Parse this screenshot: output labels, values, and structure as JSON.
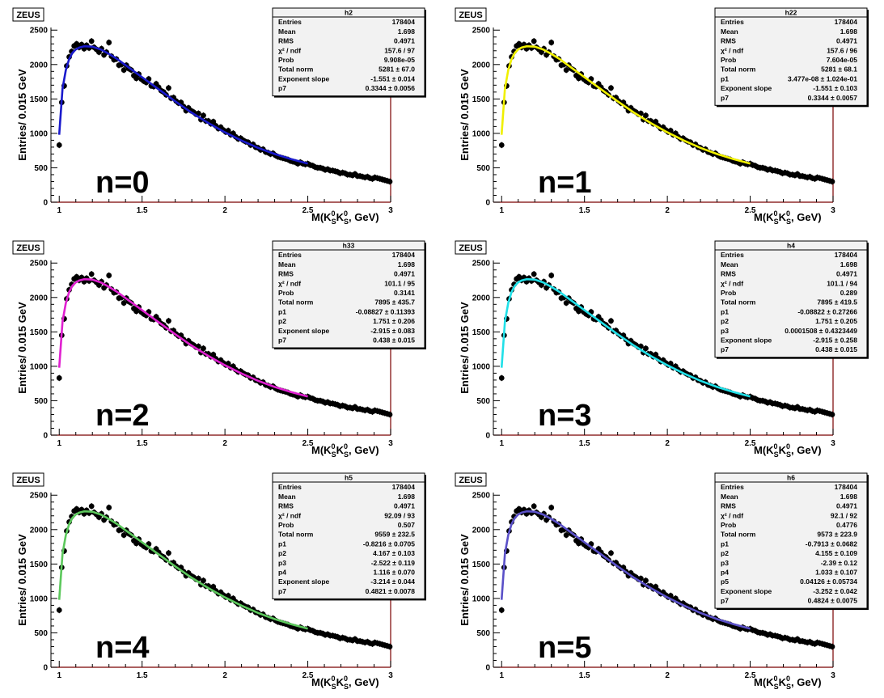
{
  "common": {
    "zeus_label": "ZEUS",
    "ylabel": "Entries/ 0.015 GeV",
    "xlabel_main": "M(K",
    "xlabel_sub1": "S",
    "xlabel_sup1": "0",
    "xlabel_mid": "K",
    "xlabel_sub2": "S",
    "xlabel_sup2": "0",
    "xlabel_end": ", GeV)",
    "xticks": [
      "1",
      "1.5",
      "2",
      "2.5",
      "3"
    ],
    "yticks": [
      "0",
      "500",
      "1000",
      "1500",
      "2000",
      "2500"
    ]
  },
  "chart_data": [
    {
      "type": "scatter",
      "annotation": "n=0",
      "fit_color": "#1a1acc",
      "xlim": [
        0.95,
        3.0
      ],
      "ylim": [
        0,
        2500
      ],
      "stats_title": "h2",
      "stats": [
        [
          "Entries",
          "178404"
        ],
        [
          "Mean",
          "1.698"
        ],
        [
          "RMS",
          "0.4971"
        ],
        [
          "χ² / ndf",
          "157.6 / 97"
        ],
        [
          "Prob",
          "9.908e-05"
        ],
        [
          "Total norm",
          "5281 ± 67.0"
        ],
        [
          "Exponent slope",
          "-1.551 ± 0.014"
        ],
        [
          "p7",
          "0.3344 ± 0.0056"
        ]
      ]
    },
    {
      "type": "scatter",
      "annotation": "n=1",
      "fit_color": "#f0f000",
      "xlim": [
        0.95,
        3.0
      ],
      "ylim": [
        0,
        2500
      ],
      "stats_title": "h22",
      "stats": [
        [
          "Entries",
          "178404"
        ],
        [
          "Mean",
          "1.698"
        ],
        [
          "RMS",
          "0.4971"
        ],
        [
          "χ² / ndf",
          "157.6 / 96"
        ],
        [
          "Prob",
          "7.604e-05"
        ],
        [
          "Total norm",
          "5281 ± 68.1"
        ],
        [
          "p1",
          "3.477e-08 ± 1.024e-01"
        ],
        [
          "Exponent slope",
          "-1.551 ± 0.103"
        ],
        [
          "p7",
          "0.3344 ± 0.0057"
        ]
      ]
    },
    {
      "type": "scatter",
      "annotation": "n=2",
      "fit_color": "#e020d0",
      "xlim": [
        0.95,
        3.0
      ],
      "ylim": [
        0,
        2500
      ],
      "stats_title": "h33",
      "stats": [
        [
          "Entries",
          "178404"
        ],
        [
          "Mean",
          "1.698"
        ],
        [
          "RMS",
          "0.4971"
        ],
        [
          "χ² / ndf",
          "101.1 / 95"
        ],
        [
          "Prob",
          "0.3141"
        ],
        [
          "Total norm",
          "7895 ± 435.7"
        ],
        [
          "p1",
          "-0.08827 ± 0.11393"
        ],
        [
          "p2",
          "1.751 ± 0.206"
        ],
        [
          "Exponent slope",
          "-2.915 ± 0.083"
        ],
        [
          "p7",
          "0.438 ± 0.015"
        ]
      ]
    },
    {
      "type": "scatter",
      "annotation": "n=3",
      "fit_color": "#20e0e8",
      "xlim": [
        0.95,
        3.0
      ],
      "ylim": [
        0,
        2500
      ],
      "stats_title": "h4",
      "stats": [
        [
          "Entries",
          "178404"
        ],
        [
          "Mean",
          "1.698"
        ],
        [
          "RMS",
          "0.4971"
        ],
        [
          "χ² / ndf",
          "101.1 / 94"
        ],
        [
          "Prob",
          "0.289"
        ],
        [
          "Total norm",
          "7895 ± 419.5"
        ],
        [
          "p1",
          "-0.08822 ± 0.27266"
        ],
        [
          "p2",
          "1.751 ± 0.205"
        ],
        [
          "p3",
          "0.0001508 ± 0.4323449"
        ],
        [
          "Exponent slope",
          "-2.915 ± 0.258"
        ],
        [
          "p7",
          "0.438 ± 0.015"
        ]
      ]
    },
    {
      "type": "scatter",
      "annotation": "n=4",
      "fit_color": "#5cc85c",
      "xlim": [
        0.95,
        3.0
      ],
      "ylim": [
        0,
        2500
      ],
      "stats_title": "h5",
      "stats": [
        [
          "Entries",
          "178404"
        ],
        [
          "Mean",
          "1.698"
        ],
        [
          "RMS",
          "0.4971"
        ],
        [
          "χ² / ndf",
          "92.09 / 93"
        ],
        [
          "Prob",
          "0.507"
        ],
        [
          "Total norm",
          "9559 ± 232.5"
        ],
        [
          "p1",
          "-0.8216 ± 0.0705"
        ],
        [
          "p2",
          "4.167 ± 0.103"
        ],
        [
          "p3",
          "-2.522 ± 0.119"
        ],
        [
          "p4",
          "1.116 ± 0.070"
        ],
        [
          "Exponent slope",
          "-3.214 ± 0.044"
        ],
        [
          "p7",
          "0.4821 ± 0.0078"
        ]
      ]
    },
    {
      "type": "scatter",
      "annotation": "n=5",
      "fit_color": "#5a50c8",
      "xlim": [
        0.95,
        3.0
      ],
      "ylim": [
        0,
        2500
      ],
      "stats_title": "h6",
      "stats": [
        [
          "Entries",
          "178404"
        ],
        [
          "Mean",
          "1.698"
        ],
        [
          "RMS",
          "0.4971"
        ],
        [
          "χ² / ndf",
          "92.1 / 92"
        ],
        [
          "Prob",
          "0.4776"
        ],
        [
          "Total norm",
          "9573 ± 223.9"
        ],
        [
          "p1",
          "-0.7913 ± 0.0682"
        ],
        [
          "p2",
          "4.155 ± 0.109"
        ],
        [
          "p3",
          "-2.39 ± 0.12"
        ],
        [
          "p4",
          "1.033 ± 0.107"
        ],
        [
          "p5",
          "0.04126 ± 0.05734"
        ],
        [
          "Exponent slope",
          "-3.252 ± 0.042"
        ],
        [
          "p7",
          "0.4824 ± 0.0075"
        ]
      ]
    }
  ],
  "data_points": {
    "x": [
      1.0,
      1.015,
      1.03,
      1.045,
      1.06,
      1.075,
      1.09,
      1.105,
      1.12,
      1.135,
      1.15,
      1.165,
      1.18,
      1.195,
      1.21,
      1.225,
      1.24,
      1.255,
      1.27,
      1.285,
      1.3,
      1.315,
      1.33,
      1.345,
      1.36,
      1.375,
      1.39,
      1.405,
      1.42,
      1.435,
      1.45,
      1.465,
      1.48,
      1.495,
      1.51,
      1.525,
      1.54,
      1.555,
      1.57,
      1.585,
      1.6,
      1.615,
      1.63,
      1.645,
      1.66,
      1.675,
      1.69,
      1.705,
      1.72,
      1.735,
      1.75,
      1.765,
      1.78,
      1.795,
      1.81,
      1.825,
      1.84,
      1.855,
      1.87,
      1.885,
      1.9,
      1.915,
      1.93,
      1.945,
      1.96,
      1.975,
      1.99,
      2.005,
      2.02,
      2.035,
      2.05,
      2.065,
      2.08,
      2.095,
      2.11,
      2.125,
      2.14,
      2.155,
      2.17,
      2.185,
      2.2,
      2.215,
      2.23,
      2.245,
      2.26,
      2.275,
      2.29,
      2.305,
      2.32,
      2.335,
      2.35,
      2.365,
      2.38,
      2.395,
      2.41,
      2.425,
      2.44,
      2.455,
      2.47,
      2.485,
      2.5,
      2.515,
      2.53,
      2.545,
      2.56,
      2.575,
      2.59,
      2.605,
      2.62,
      2.635,
      2.65,
      2.665,
      2.68,
      2.695,
      2.71,
      2.725,
      2.74,
      2.755,
      2.77,
      2.785,
      2.8,
      2.815,
      2.83,
      2.845,
      2.86,
      2.875,
      2.89,
      2.905,
      2.92,
      2.935,
      2.95,
      2.965,
      2.98,
      2.995
    ],
    "y": [
      830,
      1450,
      1690,
      1980,
      2110,
      2190,
      2270,
      2300,
      2250,
      2290,
      2230,
      2280,
      2240,
      2340,
      2250,
      2220,
      2180,
      2230,
      2140,
      2180,
      2320,
      2120,
      2070,
      2080,
      1990,
      2000,
      1920,
      1990,
      1940,
      1920,
      1840,
      1800,
      1860,
      1790,
      1760,
      1740,
      1790,
      1690,
      1680,
      1720,
      1670,
      1620,
      1600,
      1560,
      1660,
      1510,
      1520,
      1470,
      1440,
      1450,
      1390,
      1330,
      1370,
      1330,
      1310,
      1280,
      1290,
      1200,
      1260,
      1180,
      1180,
      1140,
      1170,
      1110,
      1070,
      1090,
      1050,
      1020,
      1040,
      980,
      1000,
      950,
      920,
      930,
      900,
      880,
      870,
      830,
      840,
      800,
      790,
      760,
      770,
      730,
      720,
      700,
      710,
      680,
      660,
      650,
      640,
      630,
      620,
      600,
      590,
      580,
      560,
      580,
      560,
      550,
      560,
      540,
      530,
      510,
      500,
      500,
      490,
      470,
      480,
      460,
      460,
      450,
      440,
      420,
      430,
      420,
      400,
      400,
      390,
      410,
      380,
      380,
      370,
      360,
      370,
      350,
      340,
      360,
      350,
      340,
      330,
      320,
      310,
      300
    ]
  },
  "fit_curve": {
    "x": [
      1.0,
      1.02,
      1.04,
      1.06,
      1.08,
      1.1,
      1.12,
      1.15,
      1.2,
      1.25,
      1.3,
      1.35,
      1.4,
      1.45,
      1.5,
      1.6,
      1.7,
      1.8,
      1.9,
      2.0,
      2.1,
      2.2,
      2.3,
      2.4,
      2.5
    ],
    "y": [
      980,
      1650,
      1920,
      2080,
      2170,
      2220,
      2245,
      2265,
      2260,
      2220,
      2155,
      2080,
      1990,
      1905,
      1815,
      1640,
      1465,
      1300,
      1150,
      1015,
      895,
      790,
      700,
      625,
      560
    ]
  }
}
